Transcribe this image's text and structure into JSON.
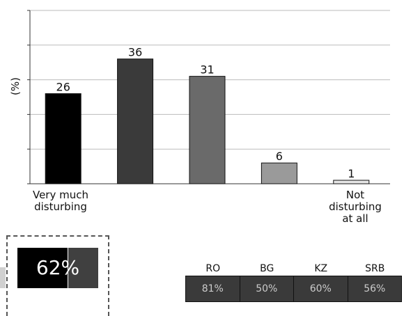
{
  "chart_data": {
    "type": "bar",
    "categories": [
      "Very much disturbing",
      "",
      "",
      "",
      "Not disturbing at all"
    ],
    "values": [
      26,
      36,
      31,
      6,
      1
    ],
    "data_labels": [
      "26",
      "36",
      "31",
      "6",
      "1"
    ],
    "bar_colors": [
      "#000000",
      "#3a3a3a",
      "#6a6a6a",
      "#9a9a9a",
      "#e6e6e6"
    ],
    "title": "",
    "xlabel": "",
    "ylabel": "(%)",
    "ylim": [
      0,
      50
    ],
    "y_tick_count": 5,
    "grid": true
  },
  "category_label_lines": {
    "first": [
      "Very much",
      "disturbing"
    ],
    "last": [
      "Not",
      "disturbing",
      "at all"
    ]
  },
  "summary": {
    "label": "62%",
    "value": 62,
    "dark_color": "#000000",
    "light_color": "#404040"
  },
  "countries": {
    "headers": [
      "RO",
      "BG",
      "KZ",
      "SRB"
    ],
    "values": [
      "81%",
      "50%",
      "60%",
      "56%"
    ]
  }
}
